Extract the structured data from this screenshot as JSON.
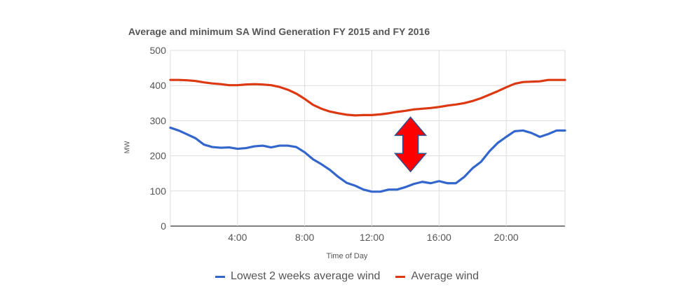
{
  "chart_data": {
    "type": "line",
    "title": "Average and minimum SA Wind Generation FY 2015 and FY 2016",
    "xlabel": "Time of Day",
    "ylabel": "MW",
    "xlim": [
      0,
      23.5
    ],
    "ylim": [
      0,
      500
    ],
    "y_ticks": [
      0,
      100,
      200,
      300,
      400,
      500
    ],
    "x_ticks": [
      {
        "value": 4,
        "label": "4:00"
      },
      {
        "value": 8,
        "label": "8:00"
      },
      {
        "value": 12,
        "label": "12:00"
      },
      {
        "value": 16,
        "label": "16:00"
      },
      {
        "value": 20,
        "label": "20:00"
      }
    ],
    "grid": true,
    "legend_position": "bottom",
    "x": [
      0,
      0.5,
      1,
      1.5,
      2,
      2.5,
      3,
      3.5,
      4,
      4.5,
      5,
      5.5,
      6,
      6.5,
      7,
      7.5,
      8,
      8.5,
      9,
      9.5,
      10,
      10.5,
      11,
      11.5,
      12,
      12.5,
      13,
      13.5,
      14,
      14.5,
      15,
      15.5,
      16,
      16.5,
      17,
      17.5,
      18,
      18.5,
      19,
      19.5,
      20,
      20.5,
      21,
      21.5,
      22,
      22.5,
      23,
      23.5
    ],
    "series": [
      {
        "name": "Lowest 2 weeks average wind",
        "color": "#3366cc",
        "values": [
          280,
          272,
          261,
          250,
          232,
          225,
          223,
          224,
          220,
          222,
          227,
          229,
          224,
          229,
          229,
          225,
          210,
          190,
          176,
          160,
          140,
          123,
          115,
          104,
          98,
          98,
          104,
          104,
          111,
          120,
          126,
          122,
          128,
          122,
          122,
          140,
          165,
          183,
          213,
          237,
          254,
          270,
          272,
          265,
          254,
          262,
          272,
          272
        ]
      },
      {
        "name": "Average wind",
        "color": "#dc3912",
        "values": [
          416,
          416,
          415,
          413,
          409,
          406,
          404,
          401,
          401,
          403,
          404,
          403,
          401,
          396,
          388,
          377,
          362,
          345,
          334,
          326,
          321,
          317,
          315,
          316,
          316,
          318,
          321,
          325,
          328,
          332,
          334,
          336,
          339,
          343,
          346,
          350,
          356,
          364,
          374,
          384,
          395,
          405,
          410,
          411,
          412,
          416,
          416,
          416
        ]
      }
    ],
    "annotations": [
      {
        "type": "double-arrow",
        "x": 14.3,
        "y_from": 155,
        "y_to": 310,
        "fill": "#ff0000",
        "stroke": "#2f4f8f"
      }
    ]
  }
}
